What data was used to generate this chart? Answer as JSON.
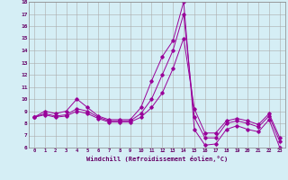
{
  "x": [
    0,
    1,
    2,
    3,
    4,
    5,
    6,
    7,
    8,
    9,
    10,
    11,
    12,
    13,
    14,
    15,
    16,
    17,
    18,
    19,
    20,
    21,
    22,
    23
  ],
  "series1": [
    8.5,
    9.0,
    8.8,
    9.0,
    10.0,
    9.3,
    8.6,
    8.3,
    8.3,
    8.3,
    9.3,
    11.5,
    13.5,
    14.8,
    18.0,
    7.5,
    6.2,
    6.3,
    7.5,
    7.8,
    7.5,
    7.3,
    8.3,
    6.0
  ],
  "series2": [
    8.5,
    8.8,
    8.6,
    8.7,
    9.2,
    9.0,
    8.5,
    8.2,
    8.2,
    8.2,
    8.8,
    10.0,
    12.0,
    14.0,
    17.0,
    8.5,
    6.8,
    6.8,
    8.0,
    8.2,
    8.0,
    7.7,
    8.6,
    6.5
  ],
  "series3": [
    8.5,
    8.7,
    8.5,
    8.6,
    9.0,
    8.8,
    8.4,
    8.1,
    8.1,
    8.1,
    8.5,
    9.3,
    10.5,
    12.5,
    15.0,
    9.2,
    7.2,
    7.2,
    8.2,
    8.4,
    8.2,
    7.9,
    8.8,
    6.8
  ],
  "line_color": "#990099",
  "bg_color": "#d5eef5",
  "grid_color": "#aaaaaa",
  "text_color": "#660066",
  "ylim": [
    6,
    18
  ],
  "yticks": [
    6,
    7,
    8,
    9,
    10,
    11,
    12,
    13,
    14,
    15,
    16,
    17,
    18
  ],
  "xlabel": "Windchill (Refroidissement éolien,°C)"
}
